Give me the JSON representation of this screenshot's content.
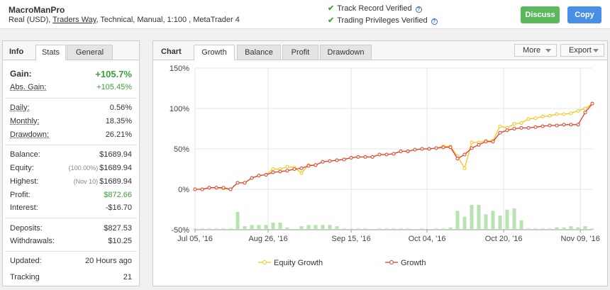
{
  "header": {
    "system_name": "MacroManPro",
    "desc_prefix": "Real (USD),",
    "broker": "Traders Way",
    "desc_suffix": ", Technical, Manual, 1:100 , MetaTrader 4",
    "verified_track_record": "Track Record Verified",
    "verified_privileges": "Trading Privileges Verified",
    "discuss_label": "Discuss",
    "copy_label": "Copy"
  },
  "left_tabs": {
    "title": "Info",
    "stats": "Stats",
    "general": "General"
  },
  "stats": {
    "gain_label": "Gain:",
    "gain": "+105.7%",
    "abs_gain_label": "Abs. Gain:",
    "abs_gain": "+105.45%",
    "daily_label": "Daily:",
    "daily": "0.56%",
    "monthly_label": "Monthly:",
    "monthly": "18.35%",
    "drawdown_label": "Drawdown:",
    "drawdown": "26.21%",
    "balance_label": "Balance:",
    "balance": "$1689.94",
    "equity_label": "Equity:",
    "equity_pct": "(100.00%)",
    "equity": "$1689.94",
    "highest_label": "Highest:",
    "highest_date": "(Nov 10)",
    "highest": "$1689.94",
    "profit_label": "Profit:",
    "profit": "$872.66",
    "interest_label": "Interest:",
    "interest": "-$16.70",
    "deposits_label": "Deposits:",
    "deposits": "$827.53",
    "withdrawals_label": "Withdrawals:",
    "withdrawals": "$10.25",
    "updated_label": "Updated:",
    "updated": "20 Hours ago",
    "tracking_label": "Tracking",
    "tracking": "21"
  },
  "chart_tabs": {
    "title": "Chart",
    "growth": "Growth",
    "balance": "Balance",
    "profit": "Profit",
    "drawdown": "Drawdown",
    "more": "More",
    "export": "Export"
  },
  "colors": {
    "equity": "#f5c518",
    "growth": "#e03c2c",
    "bars": "#b6e3b0",
    "accent_green": "#5cb85c",
    "accent_blue": "#4a8fe7"
  },
  "chart_data": {
    "type": "line",
    "x_tick_labels": [
      "Jul 05, '16",
      "Aug 26, '16",
      "Sep 15, '16",
      "Oct 04, '16",
      "Oct 20, '16",
      "Nov 09, '16"
    ],
    "y_tick_labels": [
      "150%",
      "100%",
      "50%",
      "0%",
      "-50%"
    ],
    "ylim": [
      -50,
      150
    ],
    "grid": true,
    "legend_placement": "bottom",
    "series": [
      {
        "name": "Equity Growth",
        "values": [
          0,
          0,
          2,
          2,
          1,
          0,
          8,
          8,
          14,
          17,
          18,
          25,
          25,
          28,
          27,
          20,
          30,
          30,
          34,
          35,
          36,
          37,
          39,
          40,
          40,
          40,
          43,
          43,
          44,
          47,
          47,
          49,
          50,
          50,
          51,
          53,
          53,
          41,
          26,
          58,
          58,
          60,
          60,
          78,
          76,
          81,
          82,
          87,
          88,
          90,
          91,
          93,
          93,
          94,
          97,
          100,
          106
        ]
      },
      {
        "name": "Growth",
        "values": [
          0,
          0,
          2,
          2,
          2,
          0,
          8,
          8,
          14,
          17,
          18,
          21,
          22,
          23,
          25,
          26,
          29,
          30,
          34,
          35,
          36,
          37,
          39,
          40,
          40,
          40,
          43,
          43,
          44,
          47,
          47,
          49,
          50,
          50,
          51,
          52,
          52,
          38,
          43,
          51,
          55,
          59,
          59,
          70,
          73,
          75,
          76,
          76,
          77,
          78,
          79,
          79,
          80,
          80,
          80,
          95,
          106
        ]
      }
    ],
    "bars": [
      1,
      1,
      1,
      1,
      1,
      1,
      15,
      3,
      4,
      4,
      4,
      6,
      6,
      2,
      0,
      3,
      4,
      4,
      4,
      4,
      3,
      1,
      1,
      1,
      1,
      0,
      1,
      1,
      1,
      1,
      1,
      0,
      1,
      0,
      1,
      1,
      2,
      16,
      11,
      21,
      21,
      13,
      16,
      12,
      17,
      18,
      8,
      1,
      1,
      1,
      1,
      2,
      2,
      3,
      2,
      3,
      1
    ]
  }
}
